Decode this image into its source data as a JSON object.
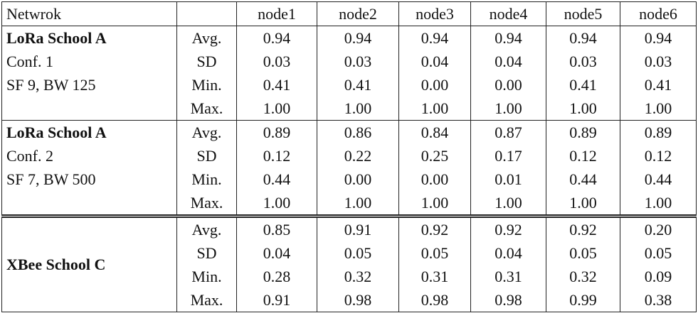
{
  "header": {
    "first": "Netwrok",
    "nodes": [
      "node1",
      "node2",
      "node3",
      "node4",
      "node5",
      "node6"
    ]
  },
  "groups": [
    {
      "label": [
        "LoRa School A",
        "Conf. 1",
        "SF 9, BW 125"
      ],
      "rows": [
        {
          "stat": "Avg.",
          "values": [
            "0.94",
            "0.94",
            "0.94",
            "0.94",
            "0.94",
            "0.94"
          ]
        },
        {
          "stat": "SD",
          "values": [
            "0.03",
            "0.03",
            "0.04",
            "0.04",
            "0.03",
            "0.03"
          ]
        },
        {
          "stat": "Min.",
          "values": [
            "0.41",
            "0.41",
            "0.00",
            "0.00",
            "0.41",
            "0.41"
          ]
        },
        {
          "stat": "Max.",
          "values": [
            "1.00",
            "1.00",
            "1.00",
            "1.00",
            "1.00",
            "1.00"
          ]
        }
      ]
    },
    {
      "label": [
        "LoRa School A",
        "Conf. 2",
        "SF 7, BW 500"
      ],
      "rows": [
        {
          "stat": "Avg.",
          "values": [
            "0.89",
            "0.86",
            "0.84",
            "0.87",
            "0.89",
            "0.89"
          ]
        },
        {
          "stat": "SD",
          "values": [
            "0.12",
            "0.22",
            "0.25",
            "0.17",
            "0.12",
            "0.12"
          ]
        },
        {
          "stat": "Min.",
          "values": [
            "0.44",
            "0.00",
            "0.00",
            "0.01",
            "0.44",
            "0.44"
          ]
        },
        {
          "stat": "Max.",
          "values": [
            "1.00",
            "1.00",
            "1.00",
            "1.00",
            "1.00",
            "1.00"
          ]
        }
      ]
    },
    {
      "label": [
        "XBee School C"
      ],
      "rows": [
        {
          "stat": "Avg.",
          "values": [
            "0.85",
            "0.91",
            "0.92",
            "0.92",
            "0.92",
            "0.20"
          ]
        },
        {
          "stat": "SD",
          "values": [
            "0.04",
            "0.05",
            "0.05",
            "0.04",
            "0.05",
            "0.05"
          ]
        },
        {
          "stat": "Min.",
          "values": [
            "0.28",
            "0.32",
            "0.31",
            "0.31",
            "0.32",
            "0.09"
          ]
        },
        {
          "stat": "Max.",
          "values": [
            "0.91",
            "0.98",
            "0.98",
            "0.98",
            "0.99",
            "0.38"
          ]
        }
      ]
    }
  ]
}
